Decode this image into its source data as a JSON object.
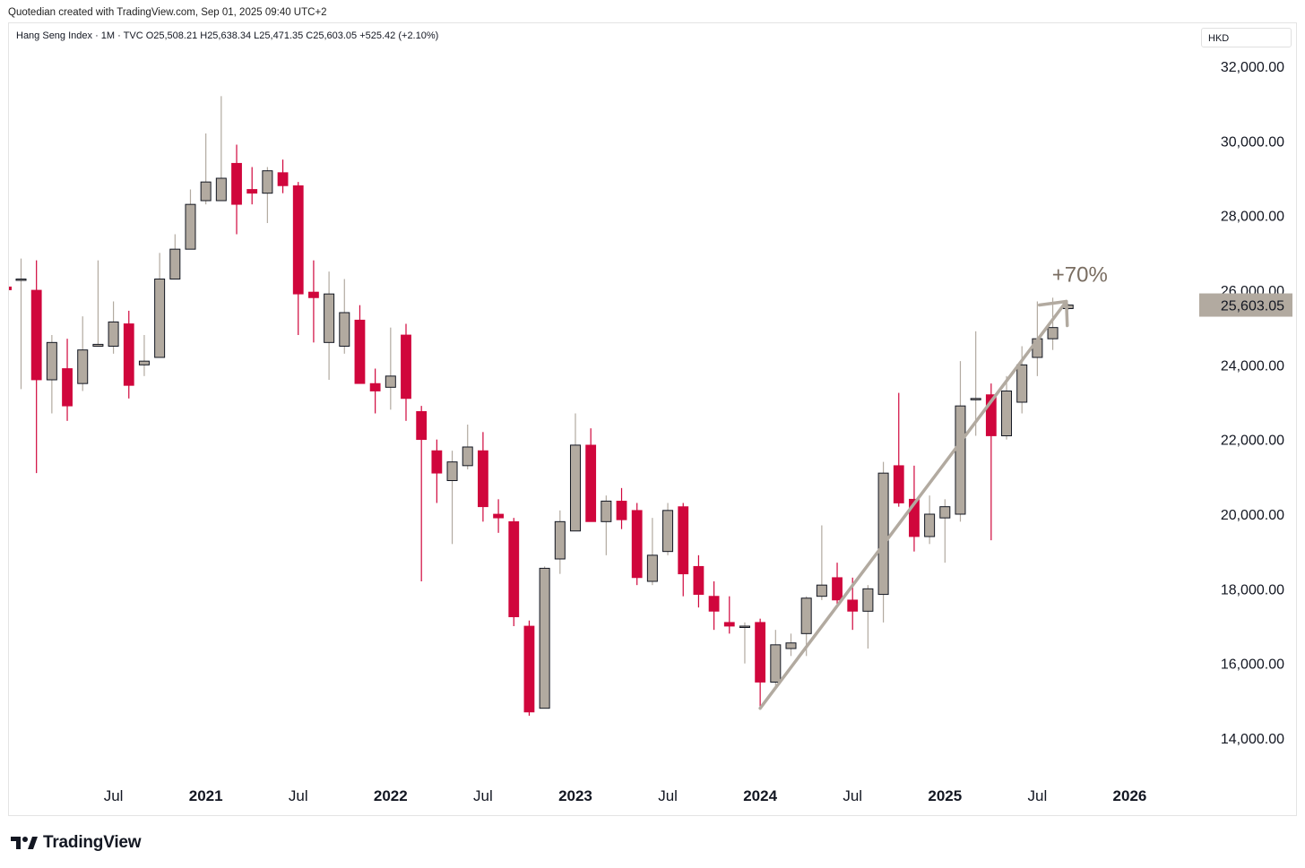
{
  "caption": "Quotedian created with TradingView.com, Sep 01, 2025 09:40 UTC+2",
  "legend": "Hang Seng Index · 1M · TVC  O25,508.21  H25,638.34  L25,471.35  C25,603.05  +525.42 (+2.10%)",
  "currency": "HKD",
  "brand": "TradingView",
  "colors": {
    "up": "#b2aaa0",
    "down": "#d0063c",
    "outline": "#131722",
    "price_label_bg": "#b2aaa0",
    "trend_line": "#b2aaa0",
    "annotation": "#7a6e62"
  },
  "chart_data": {
    "type": "candlestick",
    "title": "Hang Seng Index",
    "interval": "1M",
    "ylim": [
      13000,
      32600
    ],
    "y_ticks": [
      14000,
      16000,
      18000,
      20000,
      22000,
      24000,
      26000,
      28000,
      30000,
      32000
    ],
    "y_tick_labels": [
      "14,000.00",
      "16,000.00",
      "18,000.00",
      "20,000.00",
      "22,000.00",
      "24,000.00",
      "26,000.00",
      "28,000.00",
      "30,000.00",
      "32,000.00"
    ],
    "x_ticks": [
      {
        "label": "Jul",
        "date": "2020-07",
        "year": false
      },
      {
        "label": "2021",
        "date": "2021-01",
        "year": true
      },
      {
        "label": "Jul",
        "date": "2021-07",
        "year": false
      },
      {
        "label": "2022",
        "date": "2022-01",
        "year": true
      },
      {
        "label": "Jul",
        "date": "2022-07",
        "year": false
      },
      {
        "label": "2023",
        "date": "2023-01",
        "year": true
      },
      {
        "label": "Jul",
        "date": "2023-07",
        "year": false
      },
      {
        "label": "2024",
        "date": "2024-01",
        "year": true
      },
      {
        "label": "Jul",
        "date": "2024-07",
        "year": false
      },
      {
        "label": "2025",
        "date": "2025-01",
        "year": true
      },
      {
        "label": "Jul",
        "date": "2025-07",
        "year": false
      },
      {
        "label": "2026",
        "date": "2026-01",
        "year": true
      }
    ],
    "last_price": 25603.05,
    "last_price_label": "25,603.05",
    "annotation": {
      "text": "+70%",
      "from_date": "2024-01",
      "from_value": 14800,
      "to_date": "2025-09",
      "to_value": 25700
    },
    "candles": [
      {
        "date": "2020-01",
        "open": 26300,
        "high": 26850,
        "low": 23350,
        "close": 26300
      },
      {
        "date": "2020-02",
        "open": 26000,
        "high": 26800,
        "low": 21100,
        "close": 23600
      },
      {
        "date": "2020-03",
        "open": 23600,
        "high": 24800,
        "low": 22700,
        "close": 24600
      },
      {
        "date": "2020-04",
        "open": 23900,
        "high": 24700,
        "low": 22500,
        "close": 22900
      },
      {
        "date": "2020-05",
        "open": 23500,
        "high": 25300,
        "low": 23300,
        "close": 24400
      },
      {
        "date": "2020-06",
        "open": 24500,
        "high": 26800,
        "low": 24500,
        "close": 24550
      },
      {
        "date": "2020-07",
        "open": 24500,
        "high": 25700,
        "low": 24300,
        "close": 25150
      },
      {
        "date": "2020-08",
        "open": 25100,
        "high": 25450,
        "low": 23100,
        "close": 23450
      },
      {
        "date": "2020-09",
        "open": 24000,
        "high": 24800,
        "low": 23700,
        "close": 24100
      },
      {
        "date": "2020-10",
        "open": 24200,
        "high": 27000,
        "low": 24200,
        "close": 26300
      },
      {
        "date": "2020-11",
        "open": 26300,
        "high": 27500,
        "low": 26300,
        "close": 27100
      },
      {
        "date": "2020-12",
        "open": 27100,
        "high": 28700,
        "low": 27100,
        "close": 28300
      },
      {
        "date": "2021-01",
        "open": 28400,
        "high": 30200,
        "low": 28300,
        "close": 28900
      },
      {
        "date": "2021-02",
        "open": 28400,
        "high": 31200,
        "low": 28400,
        "close": 29000
      },
      {
        "date": "2021-03",
        "open": 29400,
        "high": 29900,
        "low": 27500,
        "close": 28300
      },
      {
        "date": "2021-04",
        "open": 28700,
        "high": 29300,
        "low": 28300,
        "close": 28600
      },
      {
        "date": "2021-05",
        "open": 28600,
        "high": 29300,
        "low": 27800,
        "close": 29200
      },
      {
        "date": "2021-06",
        "open": 29150,
        "high": 29500,
        "low": 28600,
        "close": 28800
      },
      {
        "date": "2021-07",
        "open": 28800,
        "high": 28900,
        "low": 24800,
        "close": 25900
      },
      {
        "date": "2021-08",
        "open": 25950,
        "high": 26800,
        "low": 24600,
        "close": 25800
      },
      {
        "date": "2021-09",
        "open": 24600,
        "high": 26500,
        "low": 23600,
        "close": 25900
      },
      {
        "date": "2021-10",
        "open": 24500,
        "high": 26300,
        "low": 24300,
        "close": 25400
      },
      {
        "date": "2021-11",
        "open": 25200,
        "high": 25600,
        "low": 23500,
        "close": 23500
      },
      {
        "date": "2021-12",
        "open": 23500,
        "high": 23900,
        "low": 22700,
        "close": 23300
      },
      {
        "date": "2022-01",
        "open": 23400,
        "high": 25000,
        "low": 22800,
        "close": 23700
      },
      {
        "date": "2022-02",
        "open": 24800,
        "high": 25100,
        "low": 22500,
        "close": 23100
      },
      {
        "date": "2022-03",
        "open": 22750,
        "high": 22900,
        "low": 18200,
        "close": 22000
      },
      {
        "date": "2022-04",
        "open": 21700,
        "high": 22000,
        "low": 20300,
        "close": 21100
      },
      {
        "date": "2022-05",
        "open": 20900,
        "high": 21700,
        "low": 19200,
        "close": 21400
      },
      {
        "date": "2022-06",
        "open": 21300,
        "high": 22400,
        "low": 21200,
        "close": 21800
      },
      {
        "date": "2022-07",
        "open": 21700,
        "high": 22200,
        "low": 19800,
        "close": 20200
      },
      {
        "date": "2022-08",
        "open": 20000,
        "high": 20400,
        "low": 19500,
        "close": 19900
      },
      {
        "date": "2022-09",
        "open": 19800,
        "high": 19900,
        "low": 17000,
        "close": 17250
      },
      {
        "date": "2022-10",
        "open": 17000,
        "high": 17150,
        "low": 14600,
        "close": 14700
      },
      {
        "date": "2022-11",
        "open": 14800,
        "high": 18600,
        "low": 14800,
        "close": 18550
      },
      {
        "date": "2022-12",
        "open": 18800,
        "high": 20100,
        "low": 18400,
        "close": 19800
      },
      {
        "date": "2023-01",
        "open": 19550,
        "high": 22700,
        "low": 19550,
        "close": 21850
      },
      {
        "date": "2023-02",
        "open": 21850,
        "high": 22300,
        "low": 19800,
        "close": 19800
      },
      {
        "date": "2023-03",
        "open": 19800,
        "high": 20500,
        "low": 18900,
        "close": 20350
      },
      {
        "date": "2023-04",
        "open": 20350,
        "high": 20700,
        "low": 19600,
        "close": 19850
      },
      {
        "date": "2023-05",
        "open": 20100,
        "high": 20300,
        "low": 18100,
        "close": 18300
      },
      {
        "date": "2023-06",
        "open": 18200,
        "high": 19900,
        "low": 18100,
        "close": 18900
      },
      {
        "date": "2023-07",
        "open": 19000,
        "high": 20300,
        "low": 18900,
        "close": 20100
      },
      {
        "date": "2023-08",
        "open": 20200,
        "high": 20300,
        "low": 17800,
        "close": 18400
      },
      {
        "date": "2023-09",
        "open": 18600,
        "high": 18900,
        "low": 17500,
        "close": 17850
      },
      {
        "date": "2023-10",
        "open": 17800,
        "high": 18200,
        "low": 16900,
        "close": 17400
      },
      {
        "date": "2023-11",
        "open": 17100,
        "high": 17800,
        "low": 16800,
        "close": 17000
      },
      {
        "date": "2023-12",
        "open": 17000,
        "high": 17100,
        "low": 16000,
        "close": 17000
      },
      {
        "date": "2024-01",
        "open": 17100,
        "high": 17200,
        "low": 14800,
        "close": 15500
      },
      {
        "date": "2024-02",
        "open": 15500,
        "high": 16900,
        "low": 15400,
        "close": 16500
      },
      {
        "date": "2024-03",
        "open": 16400,
        "high": 16800,
        "low": 16200,
        "close": 16550
      },
      {
        "date": "2024-04",
        "open": 16800,
        "high": 17800,
        "low": 16200,
        "close": 17750
      },
      {
        "date": "2024-05",
        "open": 17800,
        "high": 19700,
        "low": 17700,
        "close": 18100
      },
      {
        "date": "2024-06",
        "open": 18300,
        "high": 18700,
        "low": 17600,
        "close": 17700
      },
      {
        "date": "2024-07",
        "open": 17700,
        "high": 18300,
        "low": 16900,
        "close": 17400
      },
      {
        "date": "2024-08",
        "open": 17400,
        "high": 18100,
        "low": 16400,
        "close": 18000
      },
      {
        "date": "2024-09",
        "open": 17850,
        "high": 21400,
        "low": 17100,
        "close": 21100
      },
      {
        "date": "2024-10",
        "open": 21300,
        "high": 23250,
        "low": 20200,
        "close": 20300
      },
      {
        "date": "2024-11",
        "open": 20400,
        "high": 21300,
        "low": 19000,
        "close": 19400
      },
      {
        "date": "2024-12",
        "open": 19400,
        "high": 20500,
        "low": 19200,
        "close": 20000
      },
      {
        "date": "2025-01",
        "open": 19900,
        "high": 20400,
        "low": 18700,
        "close": 20200
      },
      {
        "date": "2025-02",
        "open": 20000,
        "high": 24100,
        "low": 19800,
        "close": 22900
      },
      {
        "date": "2025-03",
        "open": 23100,
        "high": 24900,
        "low": 22100,
        "close": 23100
      },
      {
        "date": "2025-04",
        "open": 23200,
        "high": 23500,
        "low": 19300,
        "close": 22100
      },
      {
        "date": "2025-05",
        "open": 22100,
        "high": 23700,
        "low": 22000,
        "close": 23300
      },
      {
        "date": "2025-06",
        "open": 23000,
        "high": 24500,
        "low": 22700,
        "close": 24000
      },
      {
        "date": "2025-07",
        "open": 24200,
        "high": 25700,
        "low": 23700,
        "close": 24700
      },
      {
        "date": "2025-08",
        "open": 24700,
        "high": 25800,
        "low": 24400,
        "close": 25000
      },
      {
        "date": "2025-09",
        "open": 25508.21,
        "high": 25638.34,
        "low": 25471.35,
        "close": 25603.05
      }
    ]
  }
}
